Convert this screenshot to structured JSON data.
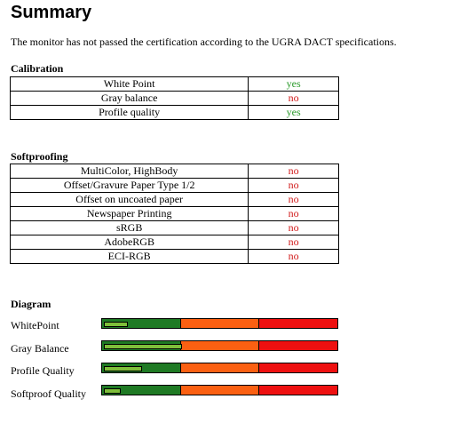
{
  "summary": {
    "title": "Summary",
    "intro": "The monitor has not passed the certification according to the UGRA DACT specifications."
  },
  "calibration": {
    "heading": "Calibration",
    "rows": [
      {
        "criterion": "White Point",
        "result": "yes"
      },
      {
        "criterion": "Gray balance",
        "result": "no"
      },
      {
        "criterion": "Profile quality",
        "result": "yes"
      }
    ]
  },
  "softproofing": {
    "heading": "Softproofing",
    "rows": [
      {
        "criterion": "MultiColor, HighBody",
        "result": "no"
      },
      {
        "criterion": "Offset/Gravure Paper Type 1/2",
        "result": "no"
      },
      {
        "criterion": "Offset on uncoated paper",
        "result": "no"
      },
      {
        "criterion": "Newspaper Printing",
        "result": "no"
      },
      {
        "criterion": "sRGB",
        "result": "no"
      },
      {
        "criterion": "AdobeRGB",
        "result": "no"
      },
      {
        "criterion": "ECI-RGB",
        "result": "no"
      }
    ]
  },
  "diagram": {
    "heading": "Diagram",
    "colors": {
      "green": "#1f7a24",
      "orange": "#fb6012",
      "red": "#ee1010",
      "indicator": "#7fbf3a"
    },
    "rows": [
      {
        "label": "WhitePoint",
        "level": 0.11
      },
      {
        "label": "Gray Balance",
        "level": 0.34
      },
      {
        "label": "Profile Quality",
        "level": 0.17
      },
      {
        "label": "Softproof Quality",
        "level": 0.08
      }
    ]
  }
}
